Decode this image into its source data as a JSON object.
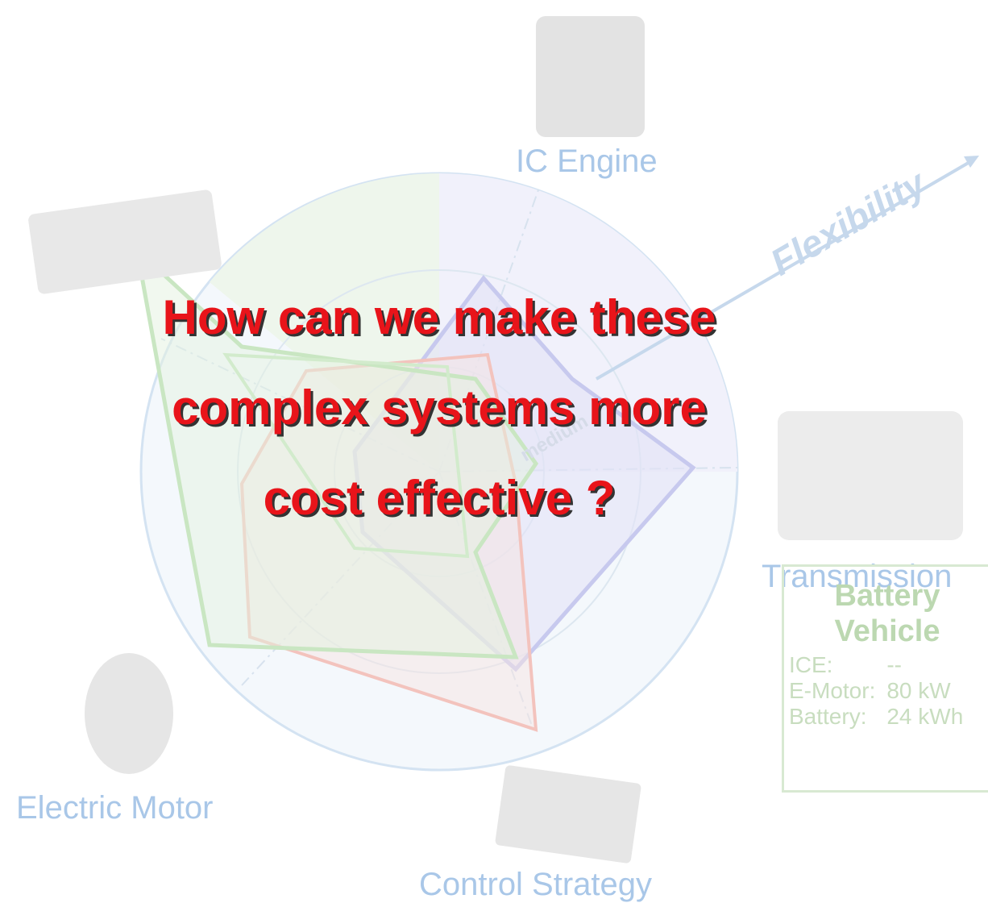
{
  "labels": {
    "engine": "IC Engine",
    "flexibility": "Flexibility",
    "transmission": "Transmission",
    "motor": "Electric Motor",
    "control": "Control Strategy",
    "battery_pack": "",
    "scale": "medium"
  },
  "question": {
    "lines": [
      "How can we make these",
      "complex systems more",
      "cost effective ?"
    ]
  },
  "info_box": {
    "title": [
      "Battery",
      "Vehicle"
    ],
    "rows": [
      [
        "ICE:",
        "--"
      ],
      [
        "E-Motor:",
        "80 kW"
      ],
      [
        "Battery:",
        "24 kWh"
      ]
    ]
  }
}
